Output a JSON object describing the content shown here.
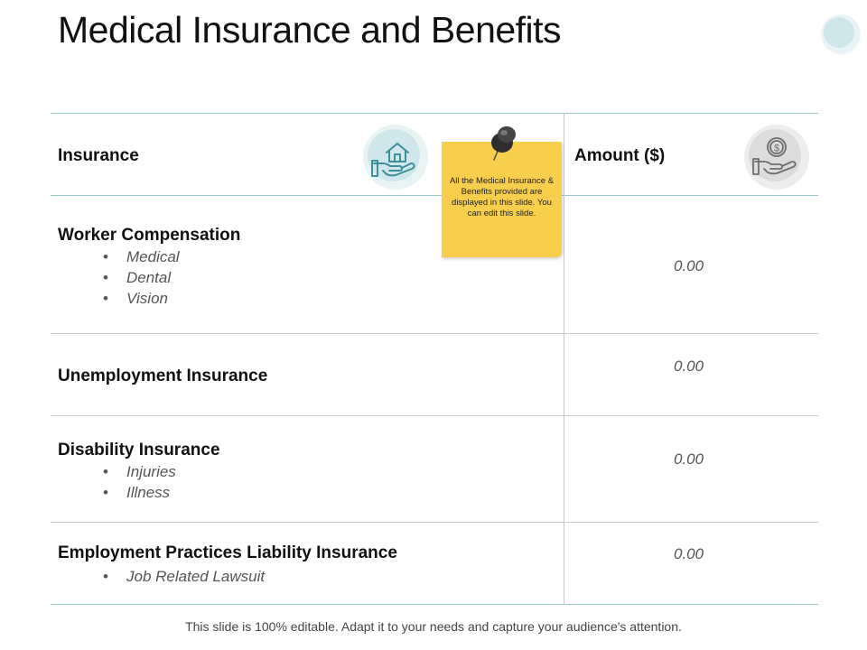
{
  "title": "Medical Insurance and Benefits",
  "table": {
    "headers": {
      "insurance": "Insurance",
      "amount": "Amount ($)"
    },
    "rows": [
      {
        "title": "Worker Compensation",
        "items": [
          "Medical",
          "Dental",
          "Vision"
        ],
        "amount": "0.00"
      },
      {
        "title": "Unemployment  Insurance",
        "items": [],
        "amount": "0.00"
      },
      {
        "title": "Disability  Insurance",
        "items": [
          "Injuries",
          "Illness"
        ],
        "amount": "0.00"
      },
      {
        "title": "Employment  Practices  Liability  Insurance",
        "items": [
          "Job Related Lawsuit"
        ],
        "amount": "0.00"
      }
    ]
  },
  "note": {
    "text": "All the Medical Insurance & Benefits provided are displayed in this slide. You can edit this slide."
  },
  "footer": "This slide is 100% editable. Adapt it to your needs and capture your audience's attention.",
  "icons": {
    "header_left": "house-in-hand-icon",
    "header_right": "dollar-coin-in-hand-icon",
    "note_pin": "push-pin-icon"
  },
  "colors": {
    "accent_line": "#9ac6cf",
    "note_yellow": "#f8cf4d",
    "icon_teal": "#d8ecee",
    "icon_grey": "#e6e6e6"
  }
}
